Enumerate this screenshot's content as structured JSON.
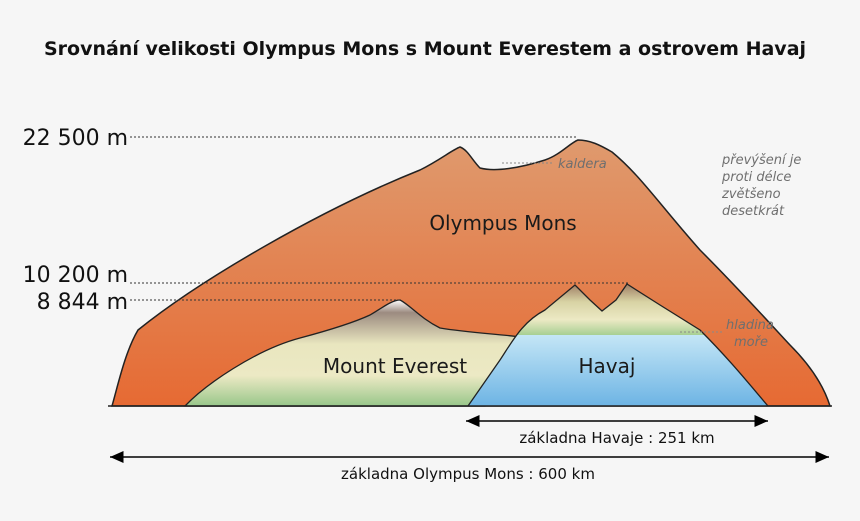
{
  "title": "Srovnání velikosti Olympus Mons s Mount Everestem a ostrovem Havaj",
  "altitudes": [
    {
      "label": "22 500 m"
    },
    {
      "label": "10 200 m"
    },
    {
      "label": "8 844 m"
    }
  ],
  "mountains": {
    "olympus": "Olympus Mons",
    "everest": "Mount Everest",
    "havaj": "Havaj"
  },
  "notes": {
    "caldera": "kaldera",
    "exaggeration": [
      "převýšení je",
      "proti délce",
      "zvětšeno",
      "desetkrát"
    ],
    "sea_level": [
      "hladina",
      "moře"
    ]
  },
  "bases": {
    "havaj": "základna Havaje : 251 km",
    "olympus": "základna Olympus Mons : 600 km"
  },
  "colors": {
    "olympus_top": "#df9a6e",
    "olympus_bottom": "#e66a33",
    "everest_top": "#9c8b80",
    "everest_mid": "#e9e6bf",
    "everest_bottom": "#9bc88c",
    "sea_top": "#c4e6f6",
    "sea_bottom": "#6db4e4"
  }
}
